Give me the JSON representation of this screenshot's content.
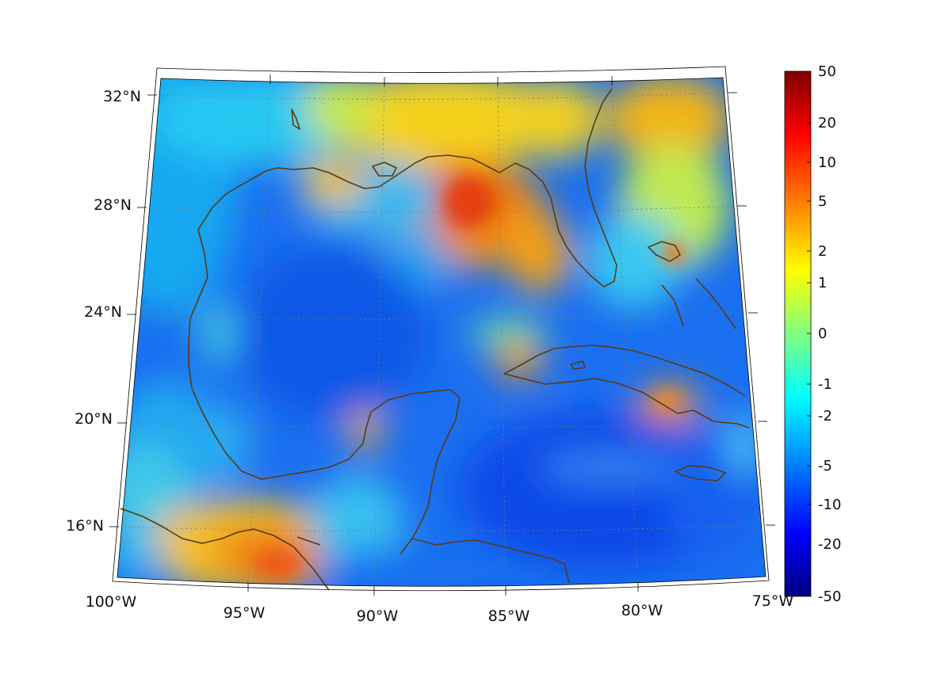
{
  "map": {
    "lon_labels": [
      "100°W",
      "95°W",
      "90°W",
      "85°W",
      "80°W",
      "75°W"
    ],
    "lat_labels": [
      "32°N",
      "28°N",
      "24°N",
      "20°N",
      "16°N"
    ],
    "grid": "dotted",
    "projection": "conic",
    "coastline_color": "#5a3a14"
  },
  "colorbar": {
    "ticks": [
      "50",
      "20",
      "10",
      "5",
      "2",
      "1",
      "0",
      "-1",
      "-2",
      "-5",
      "-10",
      "-20",
      "-50"
    ],
    "colormap": "jet",
    "colors": [
      "#7f0000",
      "#ff0000",
      "#ff7f00",
      "#ffff00",
      "#7fff7f",
      "#00ffff",
      "#007fff",
      "#0000ff",
      "#00007f"
    ]
  }
}
